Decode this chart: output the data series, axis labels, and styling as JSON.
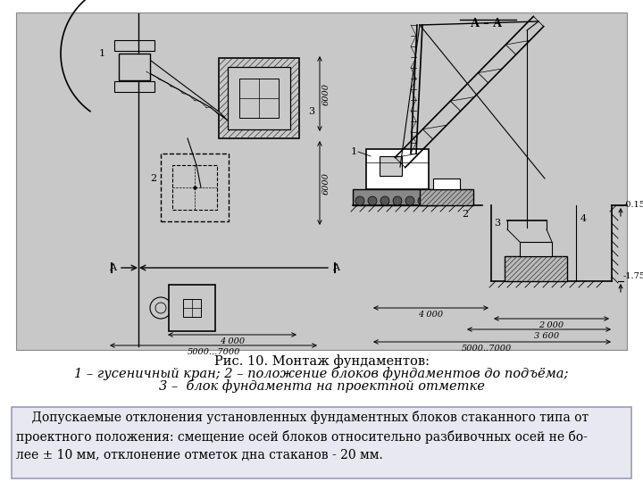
{
  "figure_bg": "#ffffff",
  "drawing_bg": "#c8c8c8",
  "box_bg": "#e8e8f0",
  "box_edge": "#9999bb",
  "caption_line1": "Рис. 10. Монтаж фундаментов:",
  "caption_line2": "1 – гусеничный кран; 2 – положение блоков фундаментов до подъёма;",
  "caption_line3": "3 –  блок фундамента на проектной отметке",
  "note_text": "    Допускаемые отклонения установленных фундаментных блоков стаканного типа от\nпроектного положения: смещение осей блоков относительно разбивочных осей не бо-\nлее ± 10 мм, отклонение отметок дна стаканов - 20 мм.",
  "caption_fontsize": 10.5,
  "note_fontsize": 10.0,
  "hatch_color": "#444444"
}
